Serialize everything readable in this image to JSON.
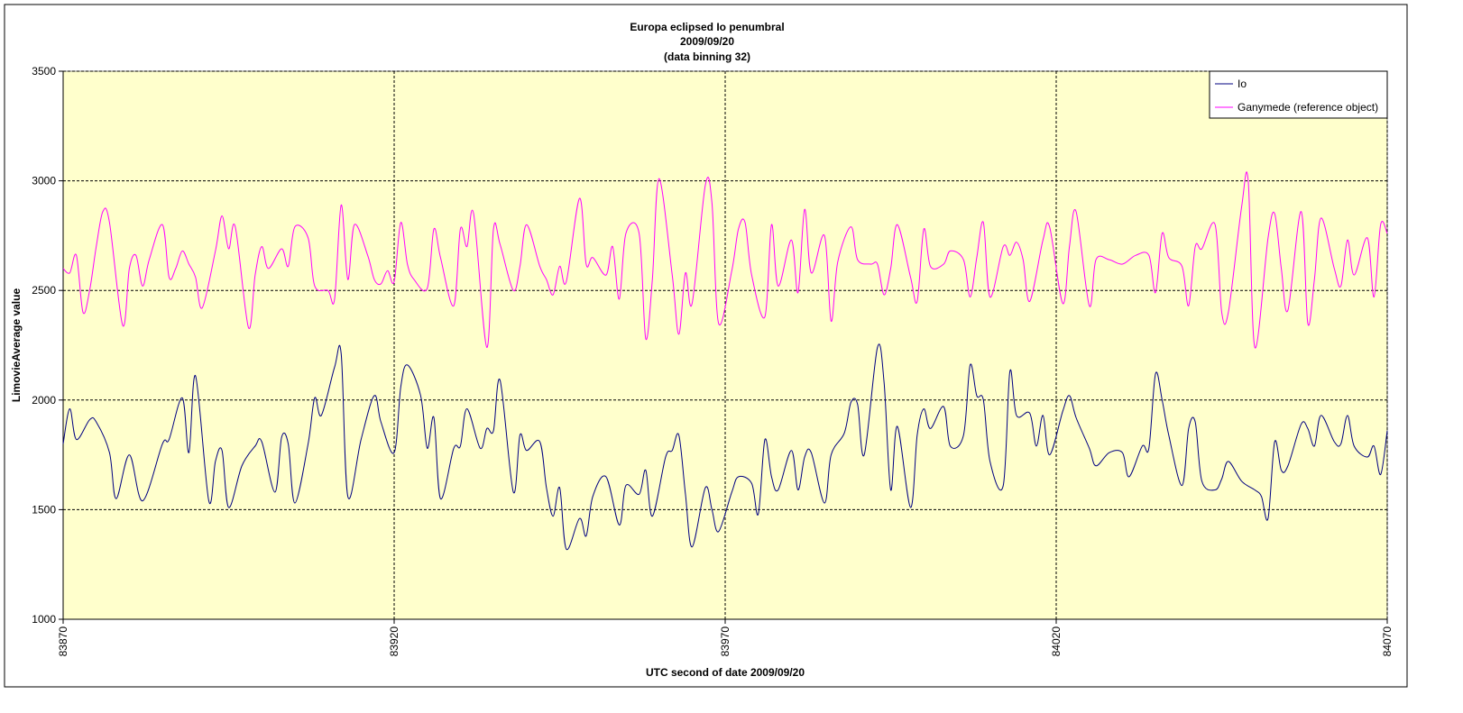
{
  "chart_data": {
    "type": "line",
    "title": "Europa eclipsed Io penumbral",
    "subtitle": [
      "2009/09/20",
      "(data binning 32)"
    ],
    "xlabel": "UTC second  of date 2009/09/20",
    "ylabel": "LimovieAverage value",
    "xlim": [
      83870,
      84070
    ],
    "xticks": [
      83870,
      83920,
      83970,
      84020,
      84070
    ],
    "ylim": [
      1000,
      3500
    ],
    "yticks": [
      1000,
      1500,
      2000,
      2500,
      3000,
      3500
    ],
    "grid": true,
    "legend": "top-right",
    "series": [
      {
        "name": "Io",
        "color": "#000080",
        "x": [
          83870,
          83871,
          83872,
          83874,
          83875,
          83877,
          83878,
          83880,
          83882,
          83885,
          83886,
          83888,
          83889,
          83890,
          83892,
          83893,
          83894,
          83895,
          83897,
          83899,
          83900,
          83902,
          83903,
          83904,
          83905,
          83907,
          83908,
          83909,
          83911,
          83912,
          83913,
          83915,
          83917,
          83918,
          83920,
          83921,
          83922,
          83924,
          83925,
          83926,
          83927,
          83929,
          83930,
          83931,
          83933,
          83934,
          83935,
          83936,
          83938,
          83939,
          83940,
          83942,
          83943,
          83944,
          83945,
          83946,
          83948,
          83949,
          83950,
          83952,
          83954,
          83955,
          83957,
          83958,
          83959,
          83961,
          83962,
          83963,
          83964,
          83965,
          83967,
          83968,
          83969,
          83971,
          83972,
          83974,
          83975,
          83976,
          83977,
          83978,
          83980,
          83981,
          83982,
          83983,
          83985,
          83986,
          83988,
          83989,
          83990,
          83991,
          83993,
          83994,
          83995,
          83996,
          83998,
          83999,
          84000,
          84001,
          84003,
          84004,
          84006,
          84007,
          84008,
          84009,
          84010,
          84012,
          84013,
          84014,
          84016,
          84017,
          84018,
          84019,
          84021,
          84022,
          84023,
          84025,
          84026,
          84028,
          84030,
          84031,
          84033,
          84034,
          84035,
          84036,
          84037,
          84039,
          84040,
          84041,
          84042,
          84044,
          84045,
          84046,
          84048,
          84050,
          84051,
          84052,
          84053,
          84054,
          84055,
          84057,
          84058,
          84059,
          84060,
          84062,
          84063,
          84064,
          84065,
          84067,
          84068,
          84069,
          84070
        ],
        "values": [
          1800,
          1960,
          1820,
          1910,
          1900,
          1760,
          1550,
          1750,
          1540,
          1800,
          1820,
          2010,
          1760,
          2110,
          1540,
          1720,
          1770,
          1510,
          1700,
          1790,
          1810,
          1580,
          1830,
          1800,
          1530,
          1800,
          2010,
          1930,
          2150,
          2210,
          1560,
          1820,
          2020,
          1900,
          1760,
          2060,
          2160,
          2020,
          1780,
          1920,
          1550,
          1780,
          1790,
          1960,
          1780,
          1870,
          1860,
          2090,
          1580,
          1840,
          1770,
          1810,
          1600,
          1470,
          1600,
          1320,
          1460,
          1380,
          1560,
          1650,
          1430,
          1610,
          1570,
          1680,
          1470,
          1740,
          1770,
          1840,
          1570,
          1330,
          1600,
          1500,
          1400,
          1580,
          1650,
          1620,
          1480,
          1820,
          1650,
          1590,
          1770,
          1590,
          1740,
          1760,
          1530,
          1750,
          1850,
          1990,
          1980,
          1750,
          2240,
          2080,
          1590,
          1880,
          1510,
          1840,
          1960,
          1870,
          1970,
          1790,
          1840,
          2160,
          2020,
          2000,
          1720,
          1610,
          2130,
          1930,
          1940,
          1790,
          1930,
          1750,
          1950,
          2020,
          1920,
          1780,
          1700,
          1760,
          1760,
          1650,
          1790,
          1780,
          2120,
          2000,
          1840,
          1610,
          1870,
          1900,
          1630,
          1590,
          1640,
          1720,
          1630,
          1590,
          1560,
          1460,
          1810,
          1680,
          1700,
          1890,
          1870,
          1790,
          1930,
          1810,
          1800,
          1930,
          1790,
          1740,
          1790,
          1660,
          1860
        ]
      },
      {
        "name": "Ganymede (reference object)",
        "color": "#ff00ff",
        "x": [
          83870,
          83871,
          83872,
          83873,
          83874,
          83875,
          83876,
          83877,
          83879,
          83880,
          83881,
          83882,
          83883,
          83885,
          83886,
          83887,
          83888,
          83889,
          83890,
          83891,
          83893,
          83894,
          83895,
          83896,
          83898,
          83899,
          83900,
          83901,
          83903,
          83904,
          83905,
          83907,
          83908,
          83910,
          83911,
          83912,
          83913,
          83914,
          83916,
          83917,
          83918,
          83919,
          83920,
          83921,
          83922,
          83923,
          83925,
          83926,
          83927,
          83929,
          83930,
          83931,
          83932,
          83934,
          83935,
          83936,
          83938,
          83939,
          83940,
          83942,
          83943,
          83944,
          83945,
          83946,
          83948,
          83949,
          83950,
          83952,
          83953,
          83954,
          83955,
          83957,
          83958,
          83959,
          83960,
          83962,
          83963,
          83964,
          83965,
          83967,
          83968,
          83969,
          83971,
          83972,
          83973,
          83974,
          83976,
          83977,
          83978,
          83980,
          83981,
          83982,
          83983,
          83985,
          83986,
          83987,
          83989,
          83990,
          83992,
          83993,
          83994,
          83995,
          83996,
          83998,
          83999,
          84000,
          84001,
          84003,
          84004,
          84006,
          84007,
          84008,
          84009,
          84010,
          84012,
          84013,
          84014,
          84015,
          84016,
          84018,
          84019,
          84021,
          84022,
          84023,
          84025,
          84026,
          84028,
          84030,
          84032,
          84034,
          84035,
          84036,
          84037,
          84039,
          84040,
          84041,
          84042,
          84044,
          84045,
          84046,
          84048,
          84049,
          84050,
          84052,
          84053,
          84054,
          84055,
          84057,
          84058,
          84059,
          84060,
          84062,
          84063,
          84064,
          84065,
          84067,
          84068,
          84069,
          84070
        ],
        "values": [
          2600,
          2580,
          2660,
          2400,
          2500,
          2700,
          2860,
          2810,
          2340,
          2600,
          2660,
          2520,
          2640,
          2800,
          2560,
          2600,
          2680,
          2620,
          2560,
          2420,
          2680,
          2840,
          2690,
          2790,
          2330,
          2570,
          2700,
          2600,
          2690,
          2610,
          2790,
          2740,
          2520,
          2500,
          2460,
          2890,
          2550,
          2800,
          2660,
          2550,
          2530,
          2590,
          2540,
          2810,
          2620,
          2550,
          2510,
          2780,
          2650,
          2430,
          2780,
          2700,
          2850,
          2240,
          2780,
          2710,
          2500,
          2610,
          2800,
          2610,
          2550,
          2480,
          2610,
          2540,
          2920,
          2620,
          2650,
          2570,
          2700,
          2460,
          2760,
          2760,
          2280,
          2550,
          3010,
          2570,
          2300,
          2580,
          2440,
          2980,
          2900,
          2350,
          2590,
          2780,
          2810,
          2570,
          2380,
          2800,
          2520,
          2730,
          2490,
          2870,
          2580,
          2750,
          2360,
          2630,
          2790,
          2640,
          2620,
          2620,
          2480,
          2600,
          2800,
          2560,
          2450,
          2780,
          2610,
          2620,
          2680,
          2640,
          2470,
          2650,
          2810,
          2470,
          2700,
          2660,
          2720,
          2640,
          2450,
          2730,
          2790,
          2440,
          2700,
          2860,
          2430,
          2640,
          2640,
          2620,
          2660,
          2660,
          2490,
          2760,
          2650,
          2610,
          2430,
          2700,
          2690,
          2800,
          2400,
          2400,
          2880,
          3000,
          2240,
          2740,
          2850,
          2600,
          2410,
          2860,
          2350,
          2550,
          2830,
          2600,
          2520,
          2730,
          2570,
          2740,
          2470,
          2800,
          2760
        ]
      }
    ]
  }
}
